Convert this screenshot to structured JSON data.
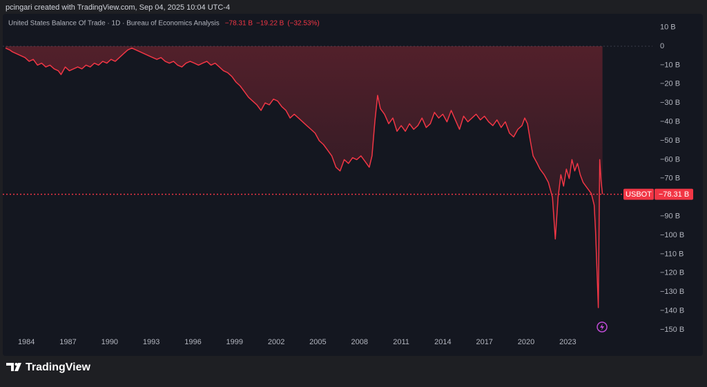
{
  "header": "pcingari created with TradingView.com, Sep 04, 2025 10:04 UTC-4",
  "brand": "TradingView",
  "chart_data": {
    "type": "line",
    "title": "United States Balance Of Trade · 1D · Bureau of Economics Analysis",
    "value_label": "−78.31 B",
    "change_label": "−19.22 B",
    "change_percent_label": "(−32.53%)",
    "symbol": "USBOT",
    "last_label": "−78.31 B",
    "xlim": [
      1982.3,
      2029.1
    ],
    "ylim": [
      -152.9,
      16.4
    ],
    "xticks": [
      1984,
      1987,
      1990,
      1993,
      1996,
      1999,
      2002,
      2005,
      2008,
      2011,
      2014,
      2017,
      2020,
      2023
    ],
    "yticks": [
      {
        "value": 10,
        "label": "10 B"
      },
      0,
      {
        "value": -10,
        "label": "−10 B"
      },
      {
        "value": -20,
        "label": "−20 B"
      },
      {
        "value": -30,
        "label": "−30 B"
      },
      {
        "value": -40,
        "label": "−40 B"
      },
      {
        "value": -50,
        "label": "−50 B"
      },
      {
        "value": -60,
        "label": "−60 B"
      },
      {
        "value": -70,
        "label": "−70 B"
      },
      {
        "value": -90,
        "label": "−90 B"
      },
      {
        "value": -100,
        "label": "−100 B"
      },
      {
        "value": -110,
        "label": "−110 B"
      },
      {
        "value": -120,
        "label": "−120 B"
      },
      {
        "value": -130,
        "label": "−130 B"
      },
      {
        "value": -140,
        "label": "−140 B"
      },
      {
        "value": -150,
        "label": "−150 B"
      }
    ],
    "grid": false,
    "zero_line": true,
    "series": [
      {
        "name": "USBOT",
        "color": "#f23645",
        "x": [
          1982.5,
          1982.8,
          1983.0,
          1983.3,
          1983.6,
          1983.9,
          1984.2,
          1984.5,
          1984.8,
          1985.1,
          1985.4,
          1985.7,
          1986.0,
          1986.3,
          1986.5,
          1986.8,
          1987.1,
          1987.4,
          1987.7,
          1988.0,
          1988.3,
          1988.6,
          1988.9,
          1989.2,
          1989.5,
          1989.8,
          1990.1,
          1990.4,
          1990.7,
          1991.0,
          1991.3,
          1991.6,
          1991.9,
          1992.2,
          1992.5,
          1992.8,
          1993.1,
          1993.4,
          1993.7,
          1994.0,
          1994.3,
          1994.6,
          1994.9,
          1995.2,
          1995.5,
          1995.8,
          1996.1,
          1996.4,
          1996.7,
          1997.0,
          1997.3,
          1997.6,
          1997.9,
          1998.2,
          1998.5,
          1998.8,
          1999.1,
          1999.4,
          1999.7,
          2000.0,
          2000.3,
          2000.6,
          2000.9,
          2001.2,
          2001.5,
          2001.8,
          2002.1,
          2002.4,
          2002.7,
          2003.0,
          2003.3,
          2003.6,
          2003.9,
          2004.2,
          2004.5,
          2004.8,
          2005.1,
          2005.4,
          2005.7,
          2006.0,
          2006.3,
          2006.6,
          2006.9,
          2007.2,
          2007.5,
          2007.8,
          2008.1,
          2008.4,
          2008.7,
          2008.9,
          2009.1,
          2009.3,
          2009.5,
          2009.8,
          2010.1,
          2010.4,
          2010.7,
          2011.0,
          2011.3,
          2011.6,
          2011.9,
          2012.2,
          2012.5,
          2012.8,
          2013.1,
          2013.4,
          2013.7,
          2014.0,
          2014.3,
          2014.6,
          2014.9,
          2015.2,
          2015.5,
          2015.8,
          2016.1,
          2016.4,
          2016.7,
          2017.0,
          2017.3,
          2017.6,
          2017.9,
          2018.2,
          2018.5,
          2018.8,
          2019.1,
          2019.4,
          2019.7,
          2019.9,
          2020.1,
          2020.3,
          2020.5,
          2020.8,
          2021.0,
          2021.3,
          2021.6,
          2021.9,
          2022.1,
          2022.3,
          2022.5,
          2022.7,
          2022.9,
          2023.1,
          2023.3,
          2023.5,
          2023.7,
          2023.9,
          2024.1,
          2024.3,
          2024.5,
          2024.7,
          2024.9,
          2025.0,
          2025.2,
          2025.3,
          2025.4,
          2025.5
        ],
        "values": [
          -1,
          -2,
          -3,
          -4,
          -5,
          -6,
          -8,
          -7,
          -10,
          -9,
          -11,
          -10,
          -12,
          -13,
          -15,
          -11,
          -13,
          -12,
          -11,
          -12,
          -10,
          -11,
          -9,
          -10,
          -8,
          -9,
          -7,
          -8,
          -6,
          -4,
          -2,
          -1,
          -2,
          -3,
          -4,
          -5,
          -6,
          -7,
          -6,
          -8,
          -9,
          -8,
          -10,
          -11,
          -9,
          -8,
          -9,
          -10,
          -9,
          -8,
          -10,
          -9,
          -11,
          -13,
          -14,
          -16,
          -19,
          -21,
          -24,
          -27,
          -29,
          -31,
          -34,
          -30,
          -31,
          -28,
          -29,
          -32,
          -34,
          -38,
          -36,
          -38,
          -40,
          -42,
          -44,
          -46,
          -50,
          -52,
          -55,
          -58,
          -64,
          -66,
          -60,
          -62,
          -59,
          -60,
          -58,
          -61,
          -64,
          -58,
          -40,
          -26,
          -33,
          -36,
          -41,
          -38,
          -45,
          -42,
          -45,
          -41,
          -44,
          -42,
          -38,
          -43,
          -41,
          -35,
          -38,
          -36,
          -40,
          -34,
          -39,
          -44,
          -37,
          -40,
          -38,
          -36,
          -39,
          -37,
          -40,
          -42,
          -39,
          -43,
          -40,
          -46,
          -48,
          -44,
          -42,
          -38,
          -41,
          -50,
          -58,
          -62,
          -65,
          -68,
          -72,
          -80,
          -102,
          -80,
          -68,
          -74,
          -65,
          -70,
          -60,
          -66,
          -62,
          -68,
          -72,
          -74,
          -76,
          -78,
          -84,
          -98,
          -138.3,
          -60,
          -71.5,
          -78.31
        ]
      }
    ]
  }
}
